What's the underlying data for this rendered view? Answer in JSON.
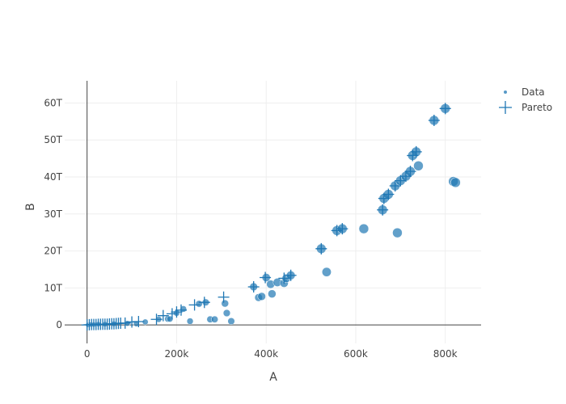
{
  "chart_data": {
    "type": "scatter",
    "title": "",
    "xlabel": "A",
    "ylabel": "B",
    "xlim": [
      -50000,
      880000
    ],
    "ylim": [
      -5,
      66
    ],
    "x_ticks": [
      0,
      200000,
      400000,
      600000,
      800000
    ],
    "x_tick_labels": [
      "0",
      "200k",
      "400k",
      "600k",
      "800k"
    ],
    "y_ticks": [
      0,
      10,
      20,
      30,
      40,
      50,
      60
    ],
    "y_tick_labels": [
      "0",
      "10T",
      "20T",
      "30T",
      "40T",
      "50T",
      "60T"
    ],
    "grid": true,
    "legend_position": "top-right",
    "colors": {
      "marker": "#1f77b4"
    },
    "series": [
      {
        "name": "Data",
        "marker": "circle",
        "points": [
          [
            2000,
            0
          ],
          [
            8000,
            0.1
          ],
          [
            15000,
            0.1
          ],
          [
            25000,
            0.2
          ],
          [
            40000,
            0.2
          ],
          [
            60000,
            0.3
          ],
          [
            90000,
            0.4
          ],
          [
            110000,
            0.3
          ],
          [
            130000,
            0.8
          ],
          [
            160000,
            1.5
          ],
          [
            180000,
            1.6
          ],
          [
            185000,
            1.6
          ],
          [
            200000,
            3.2
          ],
          [
            215000,
            4.3
          ],
          [
            230000,
            1.0
          ],
          [
            250000,
            5.7
          ],
          [
            265000,
            6.1
          ],
          [
            275000,
            1.5
          ],
          [
            285000,
            1.5
          ],
          [
            308000,
            5.8
          ],
          [
            312000,
            3.2
          ],
          [
            322000,
            1.0
          ],
          [
            372000,
            10.3
          ],
          [
            383000,
            7.4
          ],
          [
            390000,
            7.7
          ],
          [
            400000,
            12.8
          ],
          [
            410000,
            11.0
          ],
          [
            413000,
            8.4
          ],
          [
            425000,
            11.5
          ],
          [
            440000,
            11.3
          ],
          [
            445000,
            12.6
          ],
          [
            455000,
            13.4
          ],
          [
            523000,
            20.6
          ],
          [
            535000,
            14.3
          ],
          [
            558000,
            25.5
          ],
          [
            570000,
            26.0
          ],
          [
            618000,
            26.0
          ],
          [
            660000,
            31.1
          ],
          [
            663000,
            34.2
          ],
          [
            673000,
            35.3
          ],
          [
            688000,
            37.6
          ],
          [
            693000,
            24.9
          ],
          [
            700000,
            39.0
          ],
          [
            712000,
            40.2
          ],
          [
            722000,
            41.5
          ],
          [
            727000,
            45.8
          ],
          [
            735000,
            46.8
          ],
          [
            740000,
            43.0
          ],
          [
            775000,
            55.3
          ],
          [
            800000,
            58.5
          ],
          [
            818000,
            38.8
          ],
          [
            823000,
            38.5
          ]
        ]
      },
      {
        "name": "Pareto",
        "marker": "cross",
        "points": [
          [
            0,
            0
          ],
          [
            5000,
            0.05
          ],
          [
            10000,
            0.1
          ],
          [
            15000,
            0.1
          ],
          [
            20000,
            0.1
          ],
          [
            25000,
            0.15
          ],
          [
            30000,
            0.15
          ],
          [
            35000,
            0.2
          ],
          [
            40000,
            0.2
          ],
          [
            45000,
            0.2
          ],
          [
            50000,
            0.25
          ],
          [
            55000,
            0.3
          ],
          [
            60000,
            0.3
          ],
          [
            65000,
            0.35
          ],
          [
            70000,
            0.4
          ],
          [
            75000,
            0.45
          ],
          [
            85000,
            0.5
          ],
          [
            100000,
            0.8
          ],
          [
            115000,
            0.9
          ],
          [
            155000,
            1.5
          ],
          [
            170000,
            2.5
          ],
          [
            190000,
            3.0
          ],
          [
            200000,
            3.5
          ],
          [
            210000,
            4.0
          ],
          [
            240000,
            5.4
          ],
          [
            262000,
            6.1
          ],
          [
            305000,
            7.5
          ],
          [
            372000,
            10.3
          ],
          [
            398000,
            12.8
          ],
          [
            440000,
            12.6
          ],
          [
            455000,
            13.4
          ],
          [
            523000,
            20.6
          ],
          [
            558000,
            25.5
          ],
          [
            570000,
            26.0
          ],
          [
            660000,
            31.1
          ],
          [
            663000,
            34.2
          ],
          [
            673000,
            35.3
          ],
          [
            688000,
            37.6
          ],
          [
            700000,
            39.0
          ],
          [
            712000,
            40.2
          ],
          [
            722000,
            41.5
          ],
          [
            727000,
            45.8
          ],
          [
            735000,
            46.8
          ],
          [
            775000,
            55.3
          ],
          [
            800000,
            58.5
          ]
        ]
      }
    ]
  }
}
